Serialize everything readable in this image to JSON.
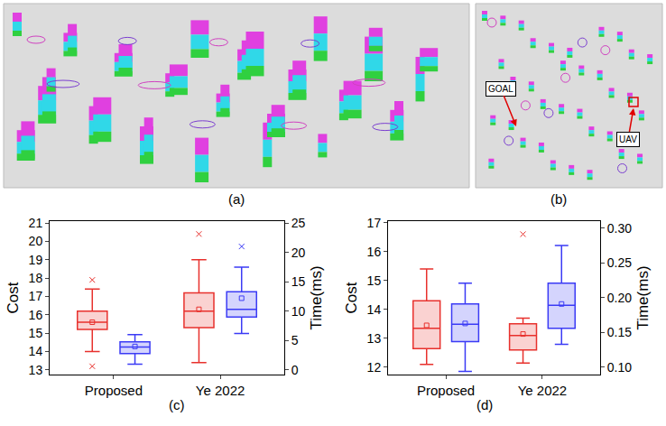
{
  "chart_data": [
    {
      "type": "box",
      "title": "(c)",
      "categories": [
        "Proposed",
        "Ye 2022"
      ],
      "ylabel": "Cost",
      "y2label": "Time(ms)",
      "ylim": [
        12.75,
        21.1
      ],
      "yticks": [
        13,
        14,
        15,
        16,
        17,
        18,
        19,
        20,
        21
      ],
      "y2lim": [
        -0.78125,
        25.3125
      ],
      "y2ticks": [
        0,
        5,
        10,
        15,
        20,
        25
      ],
      "grid": false,
      "series": [
        {
          "axis": "y",
          "color": "#e8312d",
          "marker": "x",
          "q1": [
            15.2,
            15.3
          ],
          "median": [
            15.6,
            16.2
          ],
          "q3": [
            16.2,
            17.2
          ],
          "lowerfence": [
            14.0,
            13.4
          ],
          "upperfence": [
            17.4,
            19.0
          ],
          "mean": [
            15.6,
            16.3
          ],
          "outliers": [
            [
              17.9,
              13.2
            ],
            [
              20.4
            ]
          ]
        },
        {
          "axis": "y2",
          "color": "#3b3bf5",
          "marker": "x",
          "q1": [
            2.8,
            9.0
          ],
          "median": [
            3.9,
            10.3
          ],
          "q3": [
            4.8,
            13.3
          ],
          "lowerfence": [
            1.0,
            6.2
          ],
          "upperfence": [
            6.0,
            17.5
          ],
          "mean": [
            4.0,
            12.2
          ],
          "outliers": [
            [],
            [
              21.0
            ]
          ]
        }
      ]
    },
    {
      "type": "box",
      "title": "(d)",
      "categories": [
        "Proposed",
        "Ye 2022"
      ],
      "ylabel": "Cost",
      "y2label": "Time(ms)",
      "ylim": [
        11.75,
        17.05
      ],
      "yticks": [
        12,
        13,
        14,
        15,
        16,
        17
      ],
      "y2lim": [
        0.0896,
        0.31
      ],
      "y2ticks": [
        {
          "value": 0.1,
          "label": "0.10"
        },
        0.15,
        {
          "value": 0.2,
          "label": "0.20"
        },
        0.25,
        {
          "value": 0.3,
          "label": "0.30"
        }
      ],
      "grid": false,
      "series": [
        {
          "axis": "y",
          "color": "#e8312d",
          "marker": "x",
          "q1": [
            12.65,
            12.6
          ],
          "median": [
            13.35,
            13.1
          ],
          "q3": [
            14.3,
            13.5
          ],
          "lowerfence": [
            12.1,
            12.15
          ],
          "upperfence": [
            15.4,
            13.7
          ],
          "mean": [
            13.45,
            13.15
          ],
          "outliers": [
            [],
            [
              16.6
            ]
          ]
        },
        {
          "axis": "y2",
          "color": "#3b3bf5",
          "marker": "x",
          "q1": [
            0.137,
            0.156
          ],
          "median": [
            0.162,
            0.189
          ],
          "q3": [
            0.191,
            0.221
          ],
          "lowerfence": [
            0.094,
            0.133
          ],
          "upperfence": [
            0.221,
            0.275
          ],
          "mean": [
            0.163,
            0.191
          ],
          "outliers": [
            [],
            []
          ]
        }
      ]
    }
  ],
  "panels": {
    "a": {
      "label": "(a)"
    },
    "b": {
      "label": "(b)",
      "annotations": [
        "GOAL",
        "UAV"
      ]
    }
  }
}
